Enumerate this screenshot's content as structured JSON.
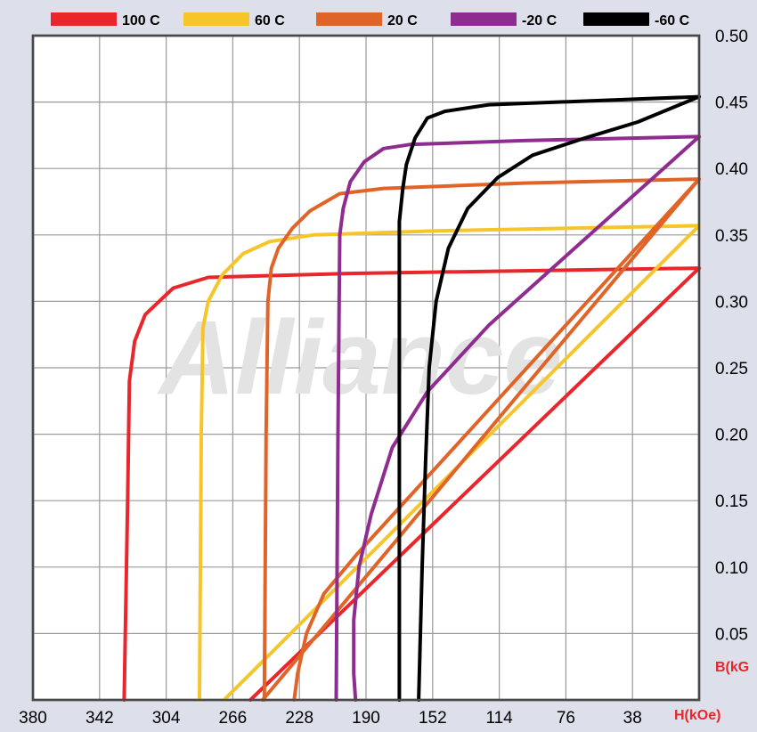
{
  "chart_data": {
    "type": "line",
    "x_axis": {
      "label": "H(kOe)",
      "reversed": true,
      "ticks": [
        380,
        342,
        304,
        266,
        228,
        190,
        152,
        114,
        76,
        38
      ],
      "range": [
        0,
        380
      ]
    },
    "y_axis": {
      "label": "B(kG",
      "ticks": [
        "0.05",
        "0.10",
        "0.15",
        "0.20",
        "0.25",
        "0.30",
        "0.35",
        "0.40",
        "0.45",
        "0.50"
      ],
      "tick_values": [
        0.05,
        0.1,
        0.15,
        0.2,
        0.25,
        0.3,
        0.35,
        0.4,
        0.45,
        0.5
      ],
      "range": [
        0,
        0.5
      ]
    },
    "grid": true,
    "legend_position": "top",
    "watermark": "Alliance",
    "series": [
      {
        "name": "100 C",
        "color": "#e8262b",
        "demag": [
          [
            328,
            0
          ],
          [
            326,
            0.15
          ],
          [
            325,
            0.24
          ],
          [
            322,
            0.27
          ],
          [
            316,
            0.29
          ],
          [
            300,
            0.31
          ],
          [
            280,
            0.318
          ],
          [
            200,
            0.321
          ],
          [
            100,
            0.323
          ],
          [
            0,
            0.325
          ]
        ],
        "load": [
          [
            256,
            0
          ],
          [
            0,
            0.325
          ]
        ]
      },
      {
        "name": "60 C",
        "color": "#f5c52a",
        "demag": [
          [
            285,
            0
          ],
          [
            284,
            0.2
          ],
          [
            283,
            0.28
          ],
          [
            280,
            0.3
          ],
          [
            272,
            0.32
          ],
          [
            260,
            0.336
          ],
          [
            245,
            0.345
          ],
          [
            220,
            0.35
          ],
          [
            150,
            0.353
          ],
          [
            0,
            0.357
          ]
        ],
        "load": [
          [
            271,
            0
          ],
          [
            0,
            0.357
          ]
        ]
      },
      {
        "name": "20 C",
        "color": "#e06428",
        "demag": [
          [
            248,
            0
          ],
          [
            247,
            0.2
          ],
          [
            246,
            0.3
          ],
          [
            244,
            0.325
          ],
          [
            240,
            0.34
          ],
          [
            232,
            0.355
          ],
          [
            222,
            0.368
          ],
          [
            205,
            0.381
          ],
          [
            180,
            0.385
          ],
          [
            100,
            0.389
          ],
          [
            0,
            0.392
          ]
        ],
        "load": [
          [
            231,
            0
          ],
          [
            229,
            0.02
          ],
          [
            224,
            0.05
          ],
          [
            214,
            0.08
          ],
          [
            195,
            0.11
          ],
          [
            0,
            0.392
          ]
        ],
        "load_linear": [
          [
            249,
            0
          ],
          [
            0,
            0.392
          ]
        ]
      },
      {
        "name": "-20 C",
        "color": "#8e2c90",
        "demag": [
          [
            207,
            0
          ],
          [
            206,
            0.2
          ],
          [
            205,
            0.35
          ],
          [
            203,
            0.37
          ],
          [
            199,
            0.39
          ],
          [
            191,
            0.405
          ],
          [
            180,
            0.415
          ],
          [
            165,
            0.418
          ],
          [
            100,
            0.421
          ],
          [
            0,
            0.424
          ]
        ],
        "load": [
          [
            196,
            0
          ],
          [
            197,
            0.02
          ],
          [
            197,
            0.06
          ],
          [
            194,
            0.1
          ],
          [
            187,
            0.14
          ],
          [
            175,
            0.19
          ],
          [
            155,
            0.232
          ],
          [
            120,
            0.282
          ],
          [
            0,
            0.424
          ]
        ]
      },
      {
        "name": "-60 C",
        "color": "#000000",
        "demag": [
          [
            171,
            0
          ],
          [
            171,
            0.2
          ],
          [
            171,
            0.36
          ],
          [
            169,
            0.385
          ],
          [
            167,
            0.403
          ],
          [
            162,
            0.423
          ],
          [
            155,
            0.438
          ],
          [
            145,
            0.443
          ],
          [
            120,
            0.448
          ],
          [
            0,
            0.454
          ]
        ],
        "load": [
          [
            160,
            0
          ],
          [
            158,
            0.1
          ],
          [
            156,
            0.18
          ],
          [
            154,
            0.25
          ],
          [
            150,
            0.3
          ],
          [
            143,
            0.34
          ],
          [
            132,
            0.37
          ],
          [
            115,
            0.393
          ],
          [
            95,
            0.41
          ],
          [
            65,
            0.423
          ],
          [
            35,
            0.435
          ],
          [
            0,
            0.454
          ]
        ]
      }
    ]
  }
}
